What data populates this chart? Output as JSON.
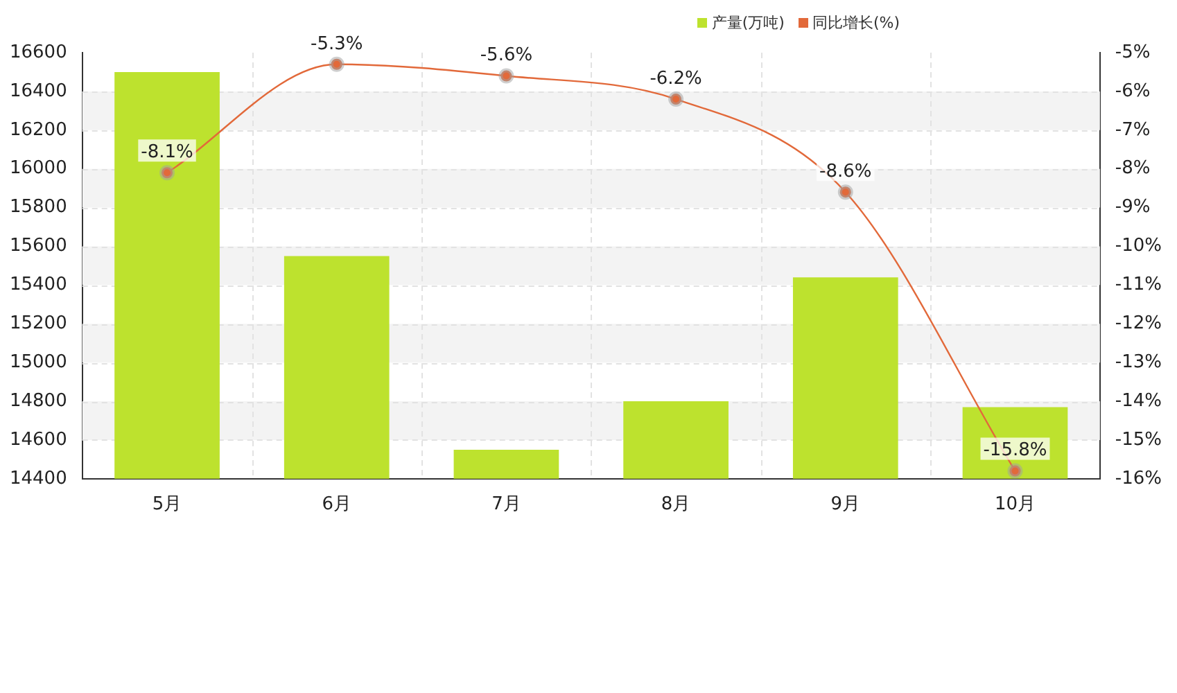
{
  "chart_data": {
    "type": "bar",
    "categories": [
      "5月",
      "6月",
      "7月",
      "8月",
      "9月",
      "10月"
    ],
    "series": [
      {
        "name": "产量(万吨)",
        "color": "#bde22e",
        "values": [
          16500,
          15550,
          14550,
          14800,
          15440,
          14770
        ]
      },
      {
        "name": "同比增长(%)",
        "type": "line",
        "axis": "y2",
        "color": "#e2693a",
        "marker": "circle",
        "values": [
          -8.1,
          -5.3,
          -5.6,
          -6.2,
          -8.6,
          -15.8
        ],
        "value_labels": [
          "-8.1%",
          "-5.3%",
          "-5.6%",
          "-6.2%",
          "-8.6%",
          "-15.8%"
        ]
      }
    ],
    "ylim": [
      14400,
      16600
    ],
    "yticks": [
      14400,
      14600,
      14800,
      15000,
      15200,
      15400,
      15600,
      15800,
      16000,
      16200,
      16400,
      16600
    ],
    "y2lim": [
      -16,
      -5
    ],
    "y2ticks": [
      {
        "value": -16,
        "label": "-16%"
      },
      {
        "value": -15,
        "label": "-15%"
      },
      {
        "value": -14,
        "label": "-14%"
      },
      {
        "value": -13,
        "label": "-13%"
      },
      {
        "value": -12,
        "label": "-12%"
      },
      {
        "value": -11,
        "label": "-11%"
      },
      {
        "value": -10,
        "label": "-10%"
      },
      {
        "value": -9,
        "label": "-9%"
      },
      {
        "value": -8,
        "label": "-8%"
      },
      {
        "value": -7,
        "label": "-7%"
      },
      {
        "value": -6,
        "label": "-6%"
      },
      {
        "value": -5,
        "label": "-5%"
      }
    ],
    "grid": true,
    "legend": "top right"
  }
}
